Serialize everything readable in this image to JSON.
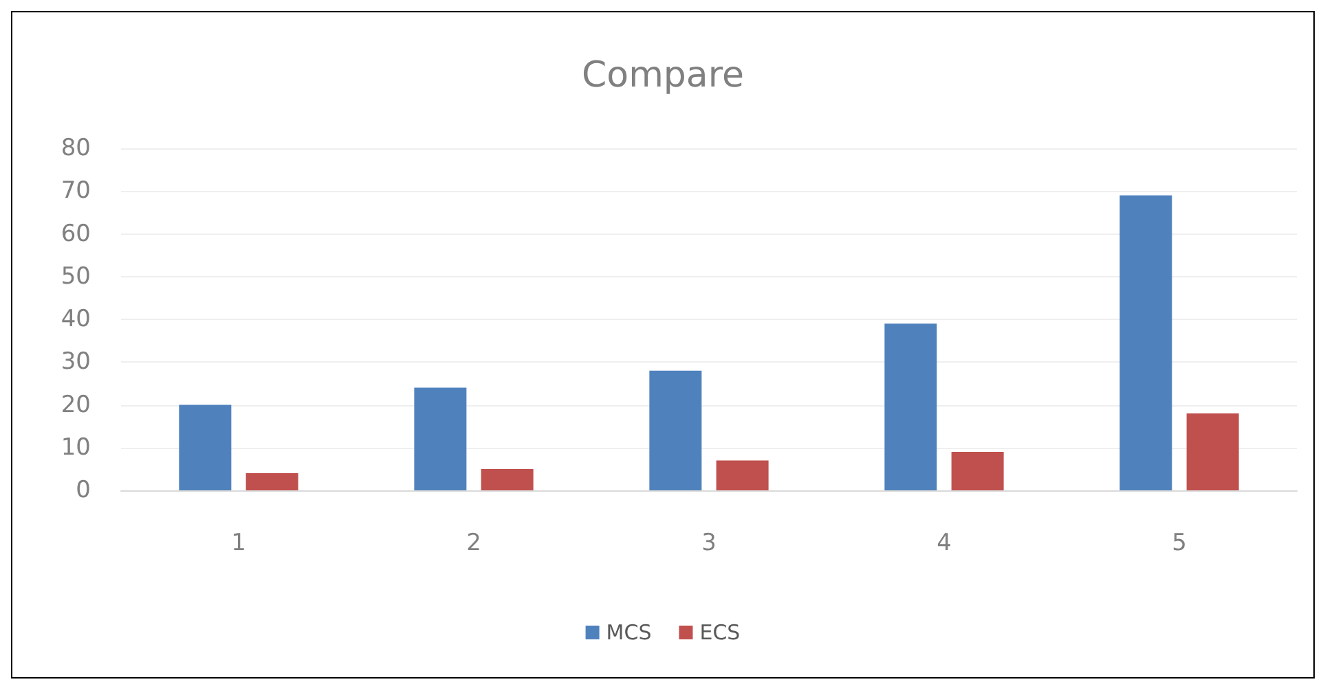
{
  "chart_data": {
    "type": "bar",
    "title": "Compare",
    "categories": [
      "1",
      "2",
      "3",
      "4",
      "5"
    ],
    "series": [
      {
        "name": "MCS",
        "color": "#4f81bd",
        "values": [
          20,
          24,
          28,
          39,
          69
        ]
      },
      {
        "name": "ECS",
        "color": "#c0504d",
        "values": [
          4,
          5,
          7,
          9,
          18
        ]
      }
    ],
    "ylim": [
      0,
      80
    ],
    "yticks": [
      0,
      10,
      20,
      30,
      40,
      50,
      60,
      70,
      80
    ],
    "grid": true,
    "legend": "bottom"
  }
}
